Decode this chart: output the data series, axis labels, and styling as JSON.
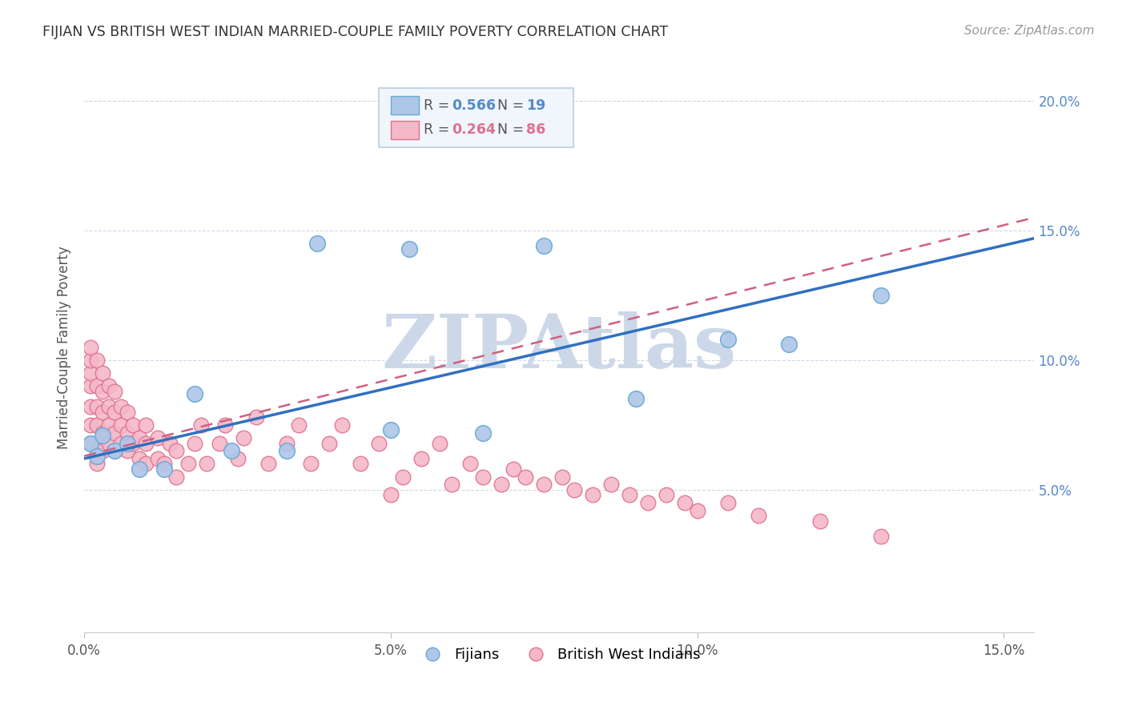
{
  "title": "FIJIAN VS BRITISH WEST INDIAN MARRIED-COUPLE FAMILY POVERTY CORRELATION CHART",
  "source": "Source: ZipAtlas.com",
  "ylabel": "Married-Couple Family Poverty",
  "xlim": [
    0.0,
    0.155
  ],
  "ylim": [
    -0.005,
    0.215
  ],
  "xticks": [
    0.0,
    0.05,
    0.1,
    0.15
  ],
  "yticks_right": [
    0.05,
    0.1,
    0.15,
    0.2
  ],
  "fijian_R": 0.566,
  "fijian_N": 19,
  "bwi_R": 0.264,
  "bwi_N": 86,
  "fijian_color": "#aec6e8",
  "fijian_edge": "#6aaad4",
  "bwi_color": "#f4b8c8",
  "bwi_edge": "#e07090",
  "blue_line_color": "#3070c0",
  "pink_line_color": "#d06080",
  "watermark": "ZIPAtlas",
  "watermark_color": "#ccd8e8",
  "fijian_x": [
    0.001,
    0.002,
    0.003,
    0.005,
    0.007,
    0.009,
    0.013,
    0.018,
    0.024,
    0.033,
    0.038,
    0.05,
    0.053,
    0.065,
    0.075,
    0.09,
    0.105,
    0.115,
    0.13
  ],
  "fijian_y": [
    0.068,
    0.063,
    0.071,
    0.065,
    0.068,
    0.058,
    0.058,
    0.087,
    0.065,
    0.065,
    0.145,
    0.073,
    0.143,
    0.072,
    0.144,
    0.085,
    0.108,
    0.106,
    0.125
  ],
  "bwi_x": [
    0.001,
    0.001,
    0.001,
    0.001,
    0.001,
    0.001,
    0.001,
    0.002,
    0.002,
    0.002,
    0.002,
    0.002,
    0.002,
    0.003,
    0.003,
    0.003,
    0.003,
    0.003,
    0.004,
    0.004,
    0.004,
    0.004,
    0.005,
    0.005,
    0.005,
    0.005,
    0.006,
    0.006,
    0.006,
    0.007,
    0.007,
    0.007,
    0.008,
    0.008,
    0.009,
    0.009,
    0.01,
    0.01,
    0.01,
    0.012,
    0.012,
    0.013,
    0.014,
    0.015,
    0.015,
    0.017,
    0.018,
    0.019,
    0.02,
    0.022,
    0.023,
    0.025,
    0.026,
    0.028,
    0.03,
    0.033,
    0.035,
    0.037,
    0.04,
    0.042,
    0.045,
    0.048,
    0.05,
    0.052,
    0.055,
    0.058,
    0.06,
    0.063,
    0.065,
    0.068,
    0.07,
    0.072,
    0.075,
    0.078,
    0.08,
    0.083,
    0.086,
    0.089,
    0.092,
    0.095,
    0.098,
    0.1,
    0.105,
    0.11,
    0.12,
    0.13
  ],
  "bwi_y": [
    0.068,
    0.075,
    0.082,
    0.09,
    0.095,
    0.1,
    0.105,
    0.06,
    0.065,
    0.075,
    0.082,
    0.09,
    0.1,
    0.065,
    0.072,
    0.08,
    0.088,
    0.095,
    0.068,
    0.075,
    0.082,
    0.09,
    0.065,
    0.072,
    0.08,
    0.088,
    0.068,
    0.075,
    0.082,
    0.065,
    0.072,
    0.08,
    0.068,
    0.075,
    0.062,
    0.07,
    0.06,
    0.068,
    0.075,
    0.062,
    0.07,
    0.06,
    0.068,
    0.055,
    0.065,
    0.06,
    0.068,
    0.075,
    0.06,
    0.068,
    0.075,
    0.062,
    0.07,
    0.078,
    0.06,
    0.068,
    0.075,
    0.06,
    0.068,
    0.075,
    0.06,
    0.068,
    0.048,
    0.055,
    0.062,
    0.068,
    0.052,
    0.06,
    0.055,
    0.052,
    0.058,
    0.055,
    0.052,
    0.055,
    0.05,
    0.048,
    0.052,
    0.048,
    0.045,
    0.048,
    0.045,
    0.042,
    0.045,
    0.04,
    0.038,
    0.032
  ]
}
